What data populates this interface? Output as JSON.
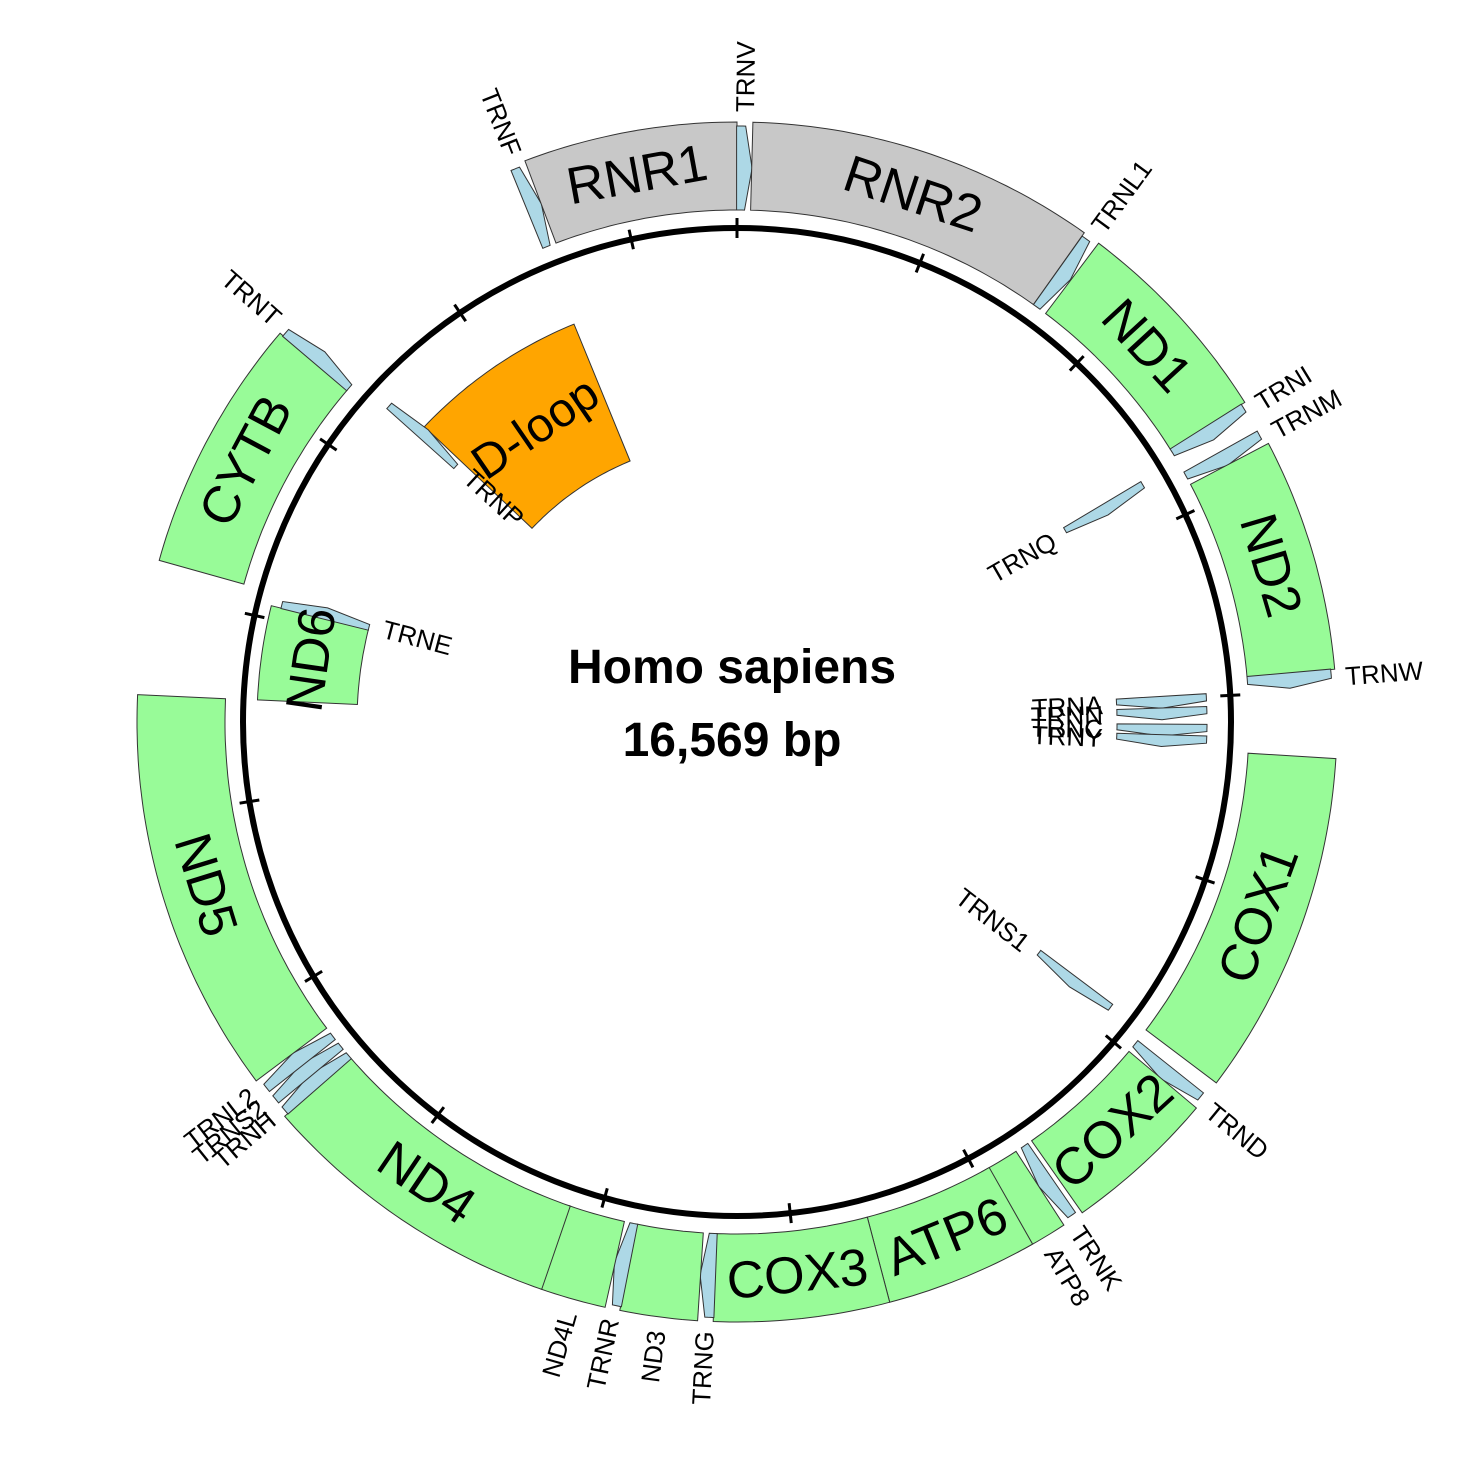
{
  "title": "Homo sapiens",
  "size_label": "16,569 bp",
  "genome_length": 16569,
  "colors": {
    "protein": "#98fb98",
    "rrna": "#c8c8c8",
    "trna": "#add8e6",
    "control": "#ffa500"
  },
  "features": [
    {
      "label": "D-loop",
      "type": "control",
      "start": 16024,
      "end": 576,
      "strand": "+"
    },
    {
      "label": "TRNF",
      "type": "trna",
      "start": 577,
      "end": 647,
      "strand": "+"
    },
    {
      "label": "RNR1",
      "type": "rrna",
      "start": 648,
      "end": 1601,
      "strand": "+"
    },
    {
      "label": "TRNV",
      "type": "trna",
      "start": 1602,
      "end": 1670,
      "strand": "+"
    },
    {
      "label": "RNR2",
      "type": "rrna",
      "start": 1671,
      "end": 3229,
      "strand": "+"
    },
    {
      "label": "TRNL1",
      "type": "trna",
      "start": 3230,
      "end": 3304,
      "strand": "+"
    },
    {
      "label": "ND1",
      "type": "protein",
      "start": 3307,
      "end": 4262,
      "strand": "+"
    },
    {
      "label": "TRNI",
      "type": "trna",
      "start": 4263,
      "end": 4331,
      "strand": "+"
    },
    {
      "label": "TRNQ",
      "type": "trna",
      "start": 4329,
      "end": 4400,
      "strand": "-"
    },
    {
      "label": "TRNM",
      "type": "trna",
      "start": 4402,
      "end": 4469,
      "strand": "+"
    },
    {
      "label": "ND2",
      "type": "protein",
      "start": 4470,
      "end": 5511,
      "strand": "+"
    },
    {
      "label": "TRNW",
      "type": "trna",
      "start": 5512,
      "end": 5579,
      "strand": "+"
    },
    {
      "label": "TRNA",
      "type": "trna",
      "start": 5587,
      "end": 5655,
      "strand": "-"
    },
    {
      "label": "TRNN",
      "type": "trna",
      "start": 5657,
      "end": 5729,
      "strand": "-"
    },
    {
      "label": "TRNC",
      "type": "trna",
      "start": 5761,
      "end": 5826,
      "strand": "-"
    },
    {
      "label": "TRNY",
      "type": "trna",
      "start": 5826,
      "end": 5891,
      "strand": "-"
    },
    {
      "label": "COX1",
      "type": "protein",
      "start": 5904,
      "end": 7445,
      "strand": "+"
    },
    {
      "label": "TRNS1",
      "type": "trna",
      "start": 7446,
      "end": 7514,
      "strand": "-"
    },
    {
      "label": "TRND",
      "type": "trna",
      "start": 7518,
      "end": 7585,
      "strand": "+"
    },
    {
      "label": "COX2",
      "type": "protein",
      "start": 7586,
      "end": 8269,
      "strand": "+"
    },
    {
      "label": "TRNK",
      "type": "trna",
      "start": 8295,
      "end": 8364,
      "strand": "+"
    },
    {
      "label": "ATP8",
      "type": "protein",
      "start": 8366,
      "end": 8572,
      "strand": "+"
    },
    {
      "label": "ATP6",
      "type": "protein",
      "start": 8527,
      "end": 9207,
      "strand": "+"
    },
    {
      "label": "COX3",
      "type": "protein",
      "start": 9207,
      "end": 9990,
      "strand": "+"
    },
    {
      "label": "TRNG",
      "type": "trna",
      "start": 9991,
      "end": 10058,
      "strand": "+"
    },
    {
      "label": "ND3",
      "type": "protein",
      "start": 10059,
      "end": 10404,
      "strand": "+"
    },
    {
      "label": "TRNR",
      "type": "trna",
      "start": 10405,
      "end": 10469,
      "strand": "+"
    },
    {
      "label": "ND4L",
      "type": "protein",
      "start": 10470,
      "end": 10766,
      "strand": "+"
    },
    {
      "label": "ND4",
      "type": "protein",
      "start": 10760,
      "end": 12137,
      "strand": "+"
    },
    {
      "label": "TRNH",
      "type": "trna",
      "start": 12138,
      "end": 12206,
      "strand": "+"
    },
    {
      "label": "TRNS2",
      "type": "trna",
      "start": 12207,
      "end": 12265,
      "strand": "+"
    },
    {
      "label": "TRNL2",
      "type": "trna",
      "start": 12266,
      "end": 12336,
      "strand": "+"
    },
    {
      "label": "ND5",
      "type": "protein",
      "start": 12337,
      "end": 14148,
      "strand": "+"
    },
    {
      "label": "ND6",
      "type": "protein",
      "start": 14149,
      "end": 14673,
      "strand": "-"
    },
    {
      "label": "TRNE",
      "type": "trna",
      "start": 14674,
      "end": 14742,
      "strand": "-"
    },
    {
      "label": "CYTB",
      "type": "protein",
      "start": 14747,
      "end": 15887,
      "strand": "+"
    },
    {
      "label": "TRNT",
      "type": "trna",
      "start": 15888,
      "end": 15953,
      "strand": "+"
    },
    {
      "label": "TRNP",
      "type": "trna",
      "start": 15956,
      "end": 16023,
      "strand": "-"
    }
  ]
}
